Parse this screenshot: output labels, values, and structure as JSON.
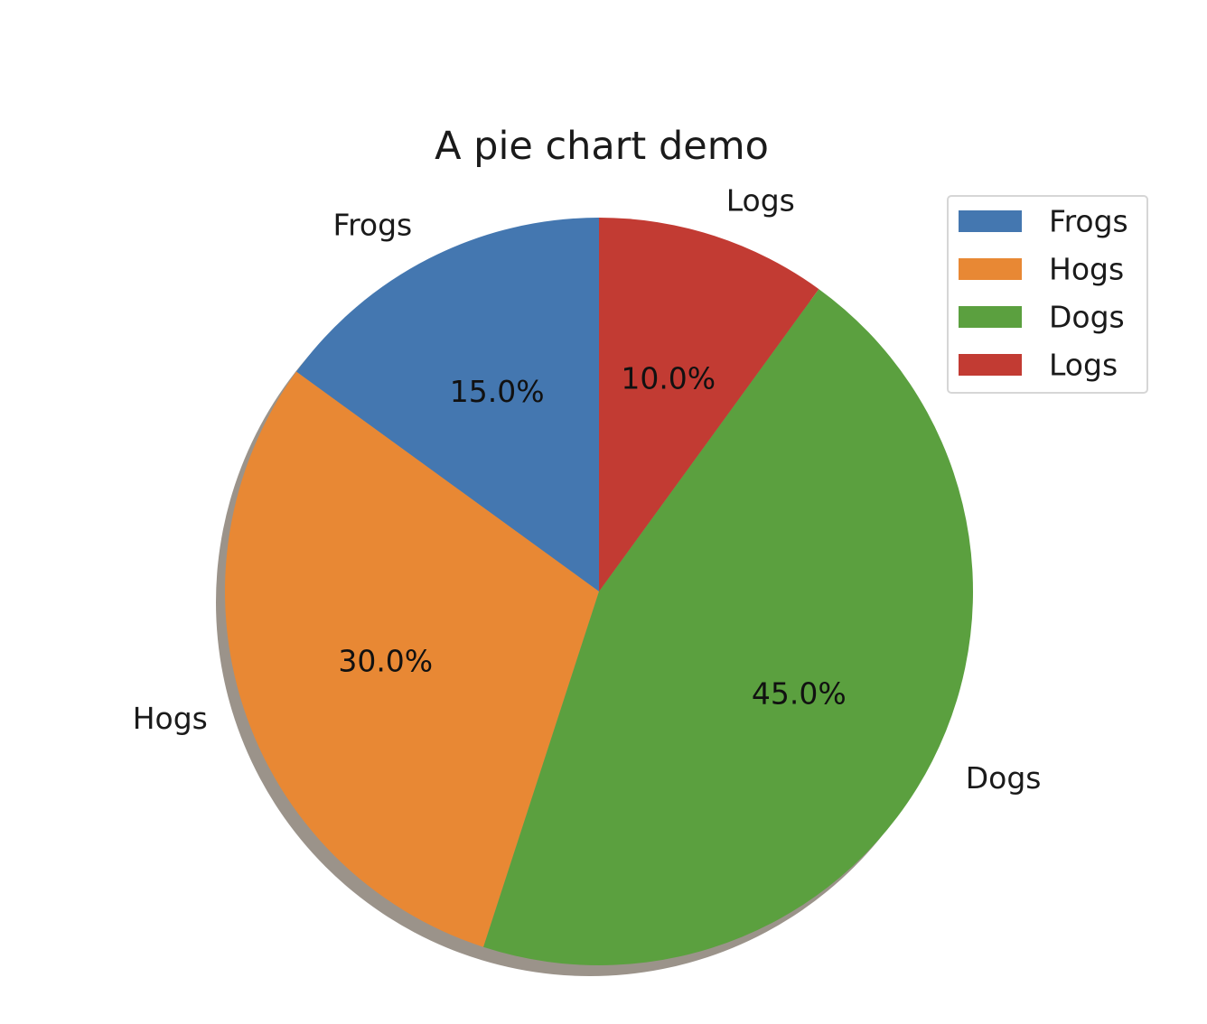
{
  "chart_data": {
    "type": "pie",
    "title": "A pie chart demo",
    "categories": [
      "Frogs",
      "Hogs",
      "Dogs",
      "Logs"
    ],
    "values": [
      15,
      30,
      45,
      10
    ],
    "percent_labels": [
      "15.0%",
      "30.0%",
      "45.0%",
      "10.0%"
    ],
    "colors": [
      "#4477b0",
      "#e88834",
      "#5ba03f",
      "#c23b33"
    ],
    "start_angle_deg": 90,
    "direction": "counterclockwise",
    "shadow": true,
    "legend": {
      "position": "top-right",
      "entries": [
        "Frogs",
        "Hogs",
        "Dogs",
        "Logs"
      ]
    }
  }
}
